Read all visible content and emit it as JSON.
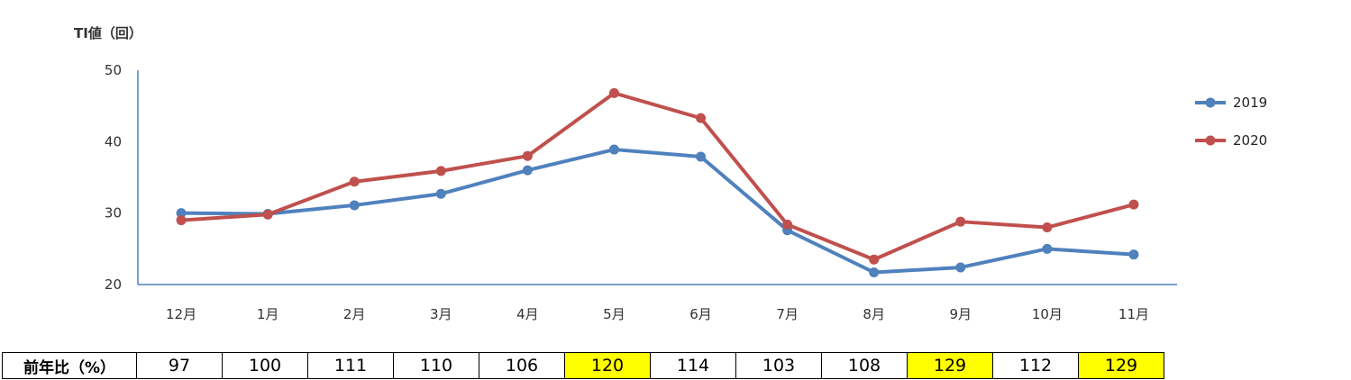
{
  "chart_data": {
    "type": "line",
    "ylabel": "TI値（回）",
    "ylim": [
      20,
      50
    ],
    "yticks": [
      20,
      30,
      40,
      50
    ],
    "categories": [
      "12月",
      "1月",
      "2月",
      "3月",
      "4月",
      "5月",
      "6月",
      "7月",
      "8月",
      "9月",
      "10月",
      "11月"
    ],
    "series": [
      {
        "name": "2019",
        "color": "#4f81bd",
        "values": [
          30.0,
          29.9,
          31.1,
          32.7,
          36.0,
          38.9,
          37.9,
          27.6,
          21.7,
          22.4,
          25.0,
          24.2
        ]
      },
      {
        "name": "2020",
        "color": "#c0504d",
        "values": [
          29.0,
          29.8,
          34.4,
          35.9,
          38.0,
          46.8,
          43.3,
          28.4,
          23.5,
          28.8,
          28.0,
          31.2
        ]
      }
    ],
    "legend_position": "right",
    "grid": false
  },
  "ratio_table": {
    "label": "前年比（%）",
    "values": [
      "97",
      "100",
      "111",
      "110",
      "106",
      "120",
      "114",
      "103",
      "108",
      "129",
      "112",
      "129"
    ],
    "highlighted": [
      false,
      false,
      false,
      false,
      false,
      true,
      false,
      false,
      false,
      true,
      false,
      true
    ],
    "highlight_color": "#ffff00"
  }
}
